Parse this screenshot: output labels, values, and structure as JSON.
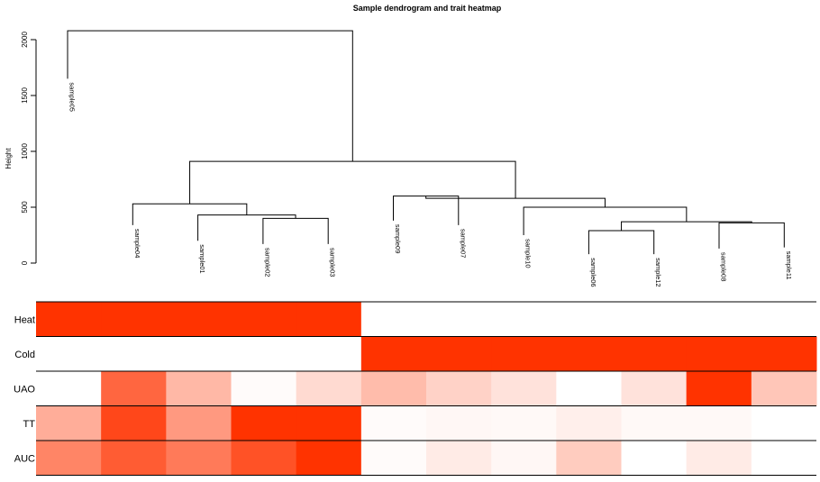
{
  "chart_data": {
    "type": "heatmap",
    "title": "Sample dendrogram and trait heatmap",
    "ylabel": "Height",
    "ylim": [
      0,
      2100
    ],
    "y_ticks": [
      0,
      500,
      1000,
      1500,
      2000
    ],
    "samples": [
      "sample05",
      "sample04",
      "sample01",
      "sample02",
      "sample03",
      "sample09",
      "sample07",
      "sample10",
      "sample06",
      "sample12",
      "sample08",
      "sample11"
    ],
    "leaf_tops": [
      1650,
      340,
      200,
      170,
      170,
      380,
      340,
      250,
      80,
      80,
      130,
      140
    ],
    "merges": [
      {
        "a": 10,
        "b": 11,
        "height": 360
      },
      {
        "a": 8,
        "b": 9,
        "height": 290
      },
      {
        "a": 13,
        "b": 12,
        "height": 370
      },
      {
        "a": 7,
        "b": 14,
        "height": 500
      },
      {
        "a": 5,
        "b": 6,
        "height": 600
      },
      {
        "a": 16,
        "b": 15,
        "height": 580
      },
      {
        "a": 3,
        "b": 4,
        "height": 400
      },
      {
        "a": 2,
        "b": 18,
        "height": 430
      },
      {
        "a": 1,
        "b": 19,
        "height": 530
      },
      {
        "a": 20,
        "b": 17,
        "height": 910
      },
      {
        "a": 0,
        "b": 21,
        "height": 2080
      }
    ],
    "traits": [
      "Heat",
      "Cold",
      "UAO",
      "TT",
      "AUC"
    ],
    "colors": {
      "low": "#ffffff",
      "high": "#ff3300"
    },
    "values": [
      [
        1,
        1,
        1,
        1,
        1,
        0,
        0,
        0,
        0,
        0,
        0,
        0
      ],
      [
        0,
        0,
        0,
        0,
        0,
        1,
        1,
        1,
        1,
        1,
        1,
        1
      ],
      [
        0.0,
        0.75,
        0.35,
        0.02,
        0.18,
        0.33,
        0.22,
        0.14,
        0.0,
        0.14,
        1.0,
        0.28
      ],
      [
        0.4,
        0.9,
        0.5,
        1.0,
        1.0,
        0.02,
        0.04,
        0.03,
        0.08,
        0.03,
        0.03,
        0.0
      ],
      [
        0.6,
        0.8,
        0.65,
        0.85,
        1.0,
        0.02,
        0.1,
        0.04,
        0.25,
        0.0,
        0.1,
        0.0
      ]
    ]
  }
}
